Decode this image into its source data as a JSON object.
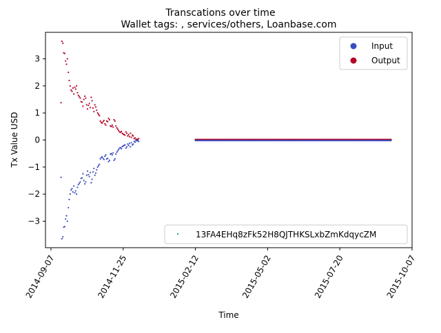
{
  "chart_data": {
    "type": "scatter",
    "title": "Transcations over time",
    "subtitle": "Wallet tags: , services/others, Loanbase.com",
    "xlabel": "Time",
    "ylabel": "Tx Value USD",
    "x_type": "date",
    "xlim": [
      "2014-09-01",
      "2015-10-07"
    ],
    "ylim": [
      -3.98,
      3.98
    ],
    "x_ticks": [
      "2014-09-07",
      "2014-11-25",
      "2015-02-12",
      "2015-05-02",
      "2015-07-20",
      "2015-10-07"
    ],
    "y_ticks": [
      -3,
      -2,
      -1,
      0,
      1,
      2,
      3
    ],
    "y_tick_labels": [
      "−3",
      "−2",
      "−1",
      "0",
      "1",
      "2",
      "3"
    ],
    "grid": false,
    "legend_top": {
      "placement": "top-right",
      "entries": [
        {
          "label": "Input",
          "color": "#3b4cc0"
        },
        {
          "label": "Output",
          "color": "#b40426"
        }
      ]
    },
    "legend_bottom": {
      "placement": "bottom-right",
      "entries": [
        {
          "label": "13FA4EHq8zFk52H8QJTHKSLxbZmKdqycZM",
          "color": "#1f9e89"
        }
      ]
    },
    "series": [
      {
        "name": "Output",
        "color": "#b40426",
        "points": [
          [
            "2014-09-18",
            1.38
          ],
          [
            "2014-09-19",
            3.65
          ],
          [
            "2014-09-20",
            3.58
          ],
          [
            "2014-09-21",
            3.22
          ],
          [
            "2014-09-22",
            3.2
          ],
          [
            "2014-09-23",
            2.92
          ],
          [
            "2014-09-24",
            2.8
          ],
          [
            "2014-09-25",
            3.0
          ],
          [
            "2014-09-26",
            2.5
          ],
          [
            "2014-09-27",
            2.2
          ],
          [
            "2014-09-28",
            2.0
          ],
          [
            "2014-09-29",
            1.85
          ],
          [
            "2014-09-30",
            1.8
          ],
          [
            "2014-10-01",
            1.92
          ],
          [
            "2014-10-02",
            1.7
          ],
          [
            "2014-10-03",
            1.95
          ],
          [
            "2014-10-04",
            1.88
          ],
          [
            "2014-10-05",
            2.0
          ],
          [
            "2014-10-06",
            1.75
          ],
          [
            "2014-10-07",
            1.65
          ],
          [
            "2014-10-08",
            1.6
          ],
          [
            "2014-10-09",
            1.55
          ],
          [
            "2014-10-10",
            1.42
          ],
          [
            "2014-10-11",
            1.4
          ],
          [
            "2014-10-12",
            1.25
          ],
          [
            "2014-10-13",
            1.5
          ],
          [
            "2014-10-14",
            1.62
          ],
          [
            "2014-10-15",
            1.55
          ],
          [
            "2014-10-16",
            1.3
          ],
          [
            "2014-10-17",
            1.15
          ],
          [
            "2014-10-18",
            1.28
          ],
          [
            "2014-10-19",
            1.35
          ],
          [
            "2014-10-20",
            1.2
          ],
          [
            "2014-10-21",
            1.58
          ],
          [
            "2014-10-22",
            1.45
          ],
          [
            "2014-10-23",
            1.18
          ],
          [
            "2014-10-24",
            1.05
          ],
          [
            "2014-10-25",
            1.3
          ],
          [
            "2014-10-26",
            1.22
          ],
          [
            "2014-10-27",
            1.1
          ],
          [
            "2014-10-28",
            1.0
          ],
          [
            "2014-10-29",
            0.95
          ],
          [
            "2014-10-30",
            0.9
          ],
          [
            "2014-10-31",
            0.7
          ],
          [
            "2014-11-01",
            0.65
          ],
          [
            "2014-11-02",
            0.62
          ],
          [
            "2014-11-03",
            0.68
          ],
          [
            "2014-11-04",
            0.72
          ],
          [
            "2014-11-05",
            0.6
          ],
          [
            "2014-11-06",
            0.55
          ],
          [
            "2014-11-07",
            0.7
          ],
          [
            "2014-11-08",
            0.68
          ],
          [
            "2014-11-09",
            0.8
          ],
          [
            "2014-11-10",
            0.75
          ],
          [
            "2014-11-11",
            0.52
          ],
          [
            "2014-11-12",
            0.5
          ],
          [
            "2014-11-13",
            0.55
          ],
          [
            "2014-11-14",
            0.48
          ],
          [
            "2014-11-15",
            0.75
          ],
          [
            "2014-11-16",
            0.7
          ],
          [
            "2014-11-17",
            0.52
          ],
          [
            "2014-11-18",
            0.45
          ],
          [
            "2014-11-19",
            0.4
          ],
          [
            "2014-11-20",
            0.35
          ],
          [
            "2014-11-21",
            0.3
          ],
          [
            "2014-11-22",
            0.28
          ],
          [
            "2014-11-23",
            0.32
          ],
          [
            "2014-11-24",
            0.25
          ],
          [
            "2014-11-25",
            0.22
          ],
          [
            "2014-11-26",
            0.2
          ],
          [
            "2014-11-27",
            0.18
          ],
          [
            "2014-11-28",
            0.3
          ],
          [
            "2014-11-29",
            0.25
          ],
          [
            "2014-11-30",
            0.15
          ],
          [
            "2014-12-01",
            0.2
          ],
          [
            "2014-12-02",
            0.12
          ],
          [
            "2014-12-03",
            0.25
          ],
          [
            "2014-12-04",
            0.1
          ],
          [
            "2014-12-05",
            0.18
          ],
          [
            "2014-12-06",
            0.15
          ],
          [
            "2014-12-07",
            0.05
          ],
          [
            "2014-12-08",
            0.08
          ],
          [
            "2014-12-09",
            0.02
          ],
          [
            "2014-12-10",
            0.03
          ],
          [
            "2014-12-11",
            0.02
          ],
          [
            "2014-12-12",
            0.05
          ]
        ],
        "flat_segment": {
          "start": "2015-02-12",
          "end": "2015-09-14",
          "value": 0.02
        }
      },
      {
        "name": "Input",
        "color": "#3b4cc0",
        "points": [
          [
            "2014-09-18",
            -1.38
          ],
          [
            "2014-09-19",
            -3.65
          ],
          [
            "2014-09-20",
            -3.58
          ],
          [
            "2014-09-21",
            -3.22
          ],
          [
            "2014-09-22",
            -3.2
          ],
          [
            "2014-09-23",
            -2.92
          ],
          [
            "2014-09-24",
            -2.8
          ],
          [
            "2014-09-25",
            -3.0
          ],
          [
            "2014-09-26",
            -2.5
          ],
          [
            "2014-09-27",
            -2.2
          ],
          [
            "2014-09-28",
            -2.0
          ],
          [
            "2014-09-29",
            -1.85
          ],
          [
            "2014-09-30",
            -1.8
          ],
          [
            "2014-10-01",
            -1.92
          ],
          [
            "2014-10-02",
            -1.7
          ],
          [
            "2014-10-03",
            -1.95
          ],
          [
            "2014-10-04",
            -1.88
          ],
          [
            "2014-10-05",
            -2.0
          ],
          [
            "2014-10-06",
            -1.75
          ],
          [
            "2014-10-07",
            -1.65
          ],
          [
            "2014-10-08",
            -1.6
          ],
          [
            "2014-10-09",
            -1.55
          ],
          [
            "2014-10-10",
            -1.42
          ],
          [
            "2014-10-11",
            -1.4
          ],
          [
            "2014-10-12",
            -1.25
          ],
          [
            "2014-10-13",
            -1.5
          ],
          [
            "2014-10-14",
            -1.62
          ],
          [
            "2014-10-15",
            -1.55
          ],
          [
            "2014-10-16",
            -1.3
          ],
          [
            "2014-10-17",
            -1.15
          ],
          [
            "2014-10-18",
            -1.28
          ],
          [
            "2014-10-19",
            -1.35
          ],
          [
            "2014-10-20",
            -1.2
          ],
          [
            "2014-10-21",
            -1.58
          ],
          [
            "2014-10-22",
            -1.45
          ],
          [
            "2014-10-23",
            -1.18
          ],
          [
            "2014-10-24",
            -1.05
          ],
          [
            "2014-10-25",
            -1.3
          ],
          [
            "2014-10-26",
            -1.22
          ],
          [
            "2014-10-27",
            -1.1
          ],
          [
            "2014-10-28",
            -1.0
          ],
          [
            "2014-10-29",
            -0.95
          ],
          [
            "2014-10-30",
            -0.9
          ],
          [
            "2014-10-31",
            -0.7
          ],
          [
            "2014-11-01",
            -0.65
          ],
          [
            "2014-11-02",
            -0.62
          ],
          [
            "2014-11-03",
            -0.68
          ],
          [
            "2014-11-04",
            -0.72
          ],
          [
            "2014-11-05",
            -0.6
          ],
          [
            "2014-11-06",
            -0.55
          ],
          [
            "2014-11-07",
            -0.7
          ],
          [
            "2014-11-08",
            -0.68
          ],
          [
            "2014-11-09",
            -0.8
          ],
          [
            "2014-11-10",
            -0.75
          ],
          [
            "2014-11-11",
            -0.52
          ],
          [
            "2014-11-12",
            -0.5
          ],
          [
            "2014-11-13",
            -0.55
          ],
          [
            "2014-11-14",
            -0.48
          ],
          [
            "2014-11-15",
            -0.75
          ],
          [
            "2014-11-16",
            -0.7
          ],
          [
            "2014-11-17",
            -0.52
          ],
          [
            "2014-11-18",
            -0.45
          ],
          [
            "2014-11-19",
            -0.4
          ],
          [
            "2014-11-20",
            -0.35
          ],
          [
            "2014-11-21",
            -0.3
          ],
          [
            "2014-11-22",
            -0.28
          ],
          [
            "2014-11-23",
            -0.32
          ],
          [
            "2014-11-24",
            -0.25
          ],
          [
            "2014-11-25",
            -0.22
          ],
          [
            "2014-11-26",
            -0.2
          ],
          [
            "2014-11-27",
            -0.18
          ],
          [
            "2014-11-28",
            -0.3
          ],
          [
            "2014-11-29",
            -0.25
          ],
          [
            "2014-11-30",
            -0.15
          ],
          [
            "2014-12-01",
            -0.2
          ],
          [
            "2014-12-02",
            -0.12
          ],
          [
            "2014-12-03",
            -0.25
          ],
          [
            "2014-12-04",
            -0.1
          ],
          [
            "2014-12-05",
            -0.18
          ],
          [
            "2014-12-06",
            -0.15
          ],
          [
            "2014-12-07",
            -0.05
          ],
          [
            "2014-12-08",
            -0.08
          ],
          [
            "2014-12-09",
            -0.02
          ],
          [
            "2014-12-10",
            -0.03
          ],
          [
            "2014-12-11",
            -0.02
          ],
          [
            "2014-12-12",
            -0.05
          ]
        ],
        "flat_segment": {
          "start": "2015-02-12",
          "end": "2015-09-14",
          "value": -0.02
        }
      }
    ]
  }
}
